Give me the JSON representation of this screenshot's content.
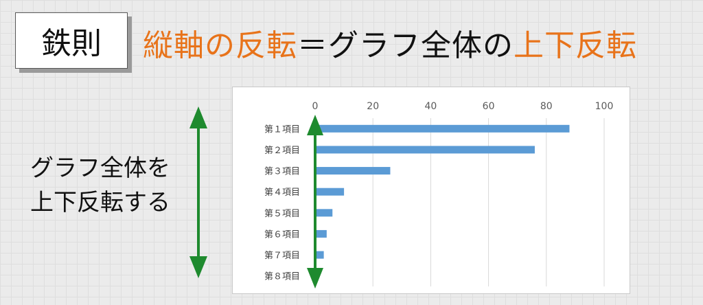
{
  "rule_label": "鉄則",
  "headline": {
    "part1": "縦軸の反転",
    "part2": "＝グラフ全体の",
    "part3": "上下反転"
  },
  "side_caption": {
    "line1": "グラフ全体を",
    "line2": "上下反転する"
  },
  "colors": {
    "accent": "#e8731a",
    "bar": "#5b9bd5",
    "arrow": "#1e8a2e"
  },
  "chart_data": {
    "type": "bar",
    "orientation": "horizontal",
    "title": "",
    "xlabel": "",
    "ylabel": "",
    "categories": [
      "第１項目",
      "第２項目",
      "第３項目",
      "第４項目",
      "第５項目",
      "第６項目",
      "第７項目",
      "第８項目"
    ],
    "values": [
      88,
      76,
      26,
      10,
      6,
      4,
      3,
      0
    ],
    "xlim": [
      0,
      100
    ],
    "xticks": [
      0,
      20,
      40,
      60,
      80,
      100
    ],
    "xtick_labels": [
      "0",
      "20",
      "40",
      "60",
      "80",
      "100"
    ],
    "x_axis_position": "top",
    "grid": true
  }
}
